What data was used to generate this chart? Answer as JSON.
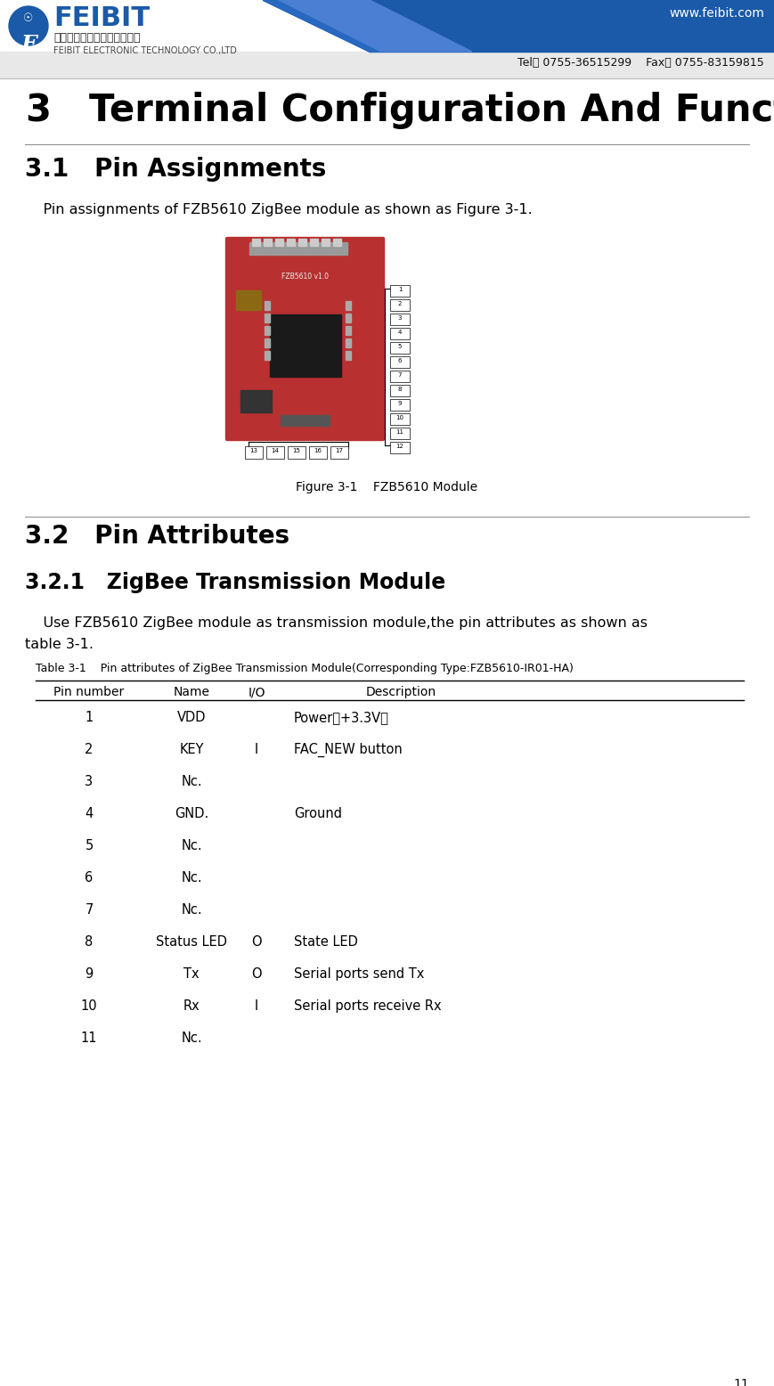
{
  "bg_color": "#ffffff",
  "header_website": "www.feibit.com",
  "header_tel": "Tel： 0755-36515299    Fax： 0755-83159815",
  "chapter_num": "3",
  "chapter_title": "Terminal Configuration And Functions",
  "section_31": "3.1   Pin Assignments",
  "para_31": "    Pin assignments of FZB5610 ZigBee module as shown as Figure 3-1.",
  "fig_caption": "Figure 3-1    FZB5610 Module",
  "section_32": "3.2   Pin Attributes",
  "section_321": "3.2.1   ZigBee Transmission Module",
  "para_321a": "    Use FZB5610 ZigBee module as transmission module,the pin attributes as shown as",
  "para_321b": "table 3-1.",
  "table_title": "Table 3-1    Pin attributes of ZigBee Transmission Module(Corresponding Type:FZB5610-IR01-HA)",
  "table_headers": [
    "Pin number",
    "Name",
    "I/O",
    "Description"
  ],
  "table_data": [
    [
      "1",
      "VDD",
      "",
      "Power（+3.3V）"
    ],
    [
      "2",
      "KEY",
      "I",
      "FAC_NEW button"
    ],
    [
      "3",
      "Nc.",
      "",
      ""
    ],
    [
      "4",
      "GND.",
      "",
      "Ground"
    ],
    [
      "5",
      "Nc.",
      "",
      ""
    ],
    [
      "6",
      "Nc.",
      "",
      ""
    ],
    [
      "7",
      "Nc.",
      "",
      ""
    ],
    [
      "8",
      "Status LED",
      "O",
      "State LED"
    ],
    [
      "9",
      "Tx",
      "O",
      "Serial ports send Tx"
    ],
    [
      "10",
      "Rx",
      "I",
      "Serial ports receive Rx"
    ],
    [
      "11",
      "Nc.",
      "",
      ""
    ]
  ],
  "page_number": "11",
  "blue_dark": "#1a5aa8",
  "blue_mid": "#2868c0",
  "blue_light": "#4a7fd4"
}
